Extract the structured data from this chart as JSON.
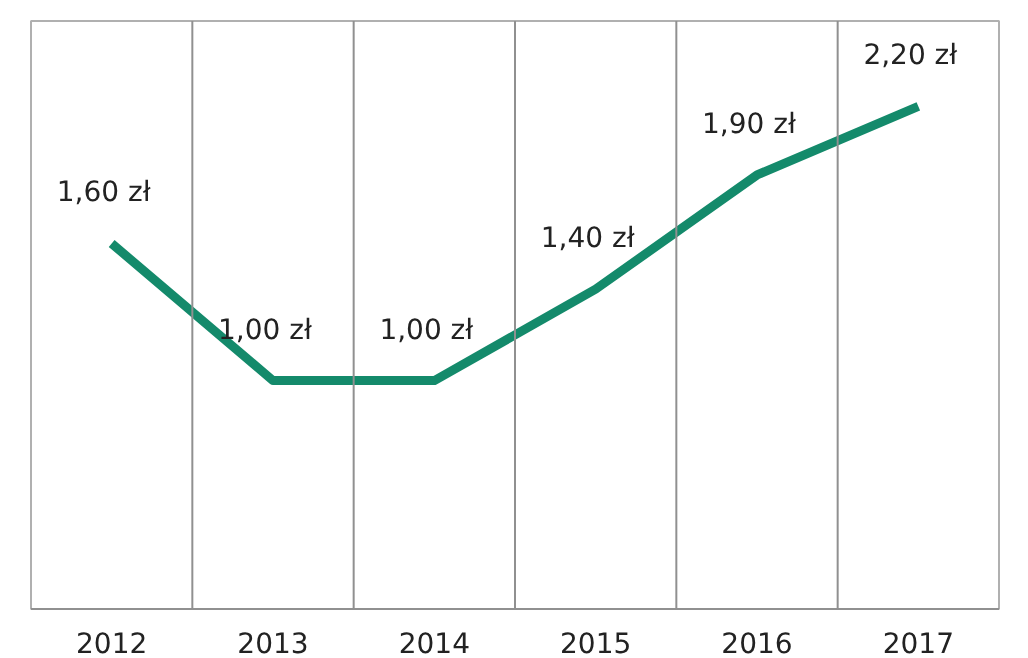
{
  "chart_data": {
    "type": "line",
    "categories": [
      "2012",
      "2013",
      "2014",
      "2015",
      "2016",
      "2017"
    ],
    "series": [
      {
        "color": "#148a6b",
        "values": [
          1.6,
          1.0,
          1.0,
          1.4,
          1.9,
          2.2
        ],
        "value_labels": [
          "1,60 zł",
          "1,00 zł",
          "1,00 zł",
          "1,40 zł",
          "1,90 zł",
          "2,20 zł"
        ]
      }
    ],
    "grid": "x",
    "marker": "none",
    "line_style": "solid"
  }
}
